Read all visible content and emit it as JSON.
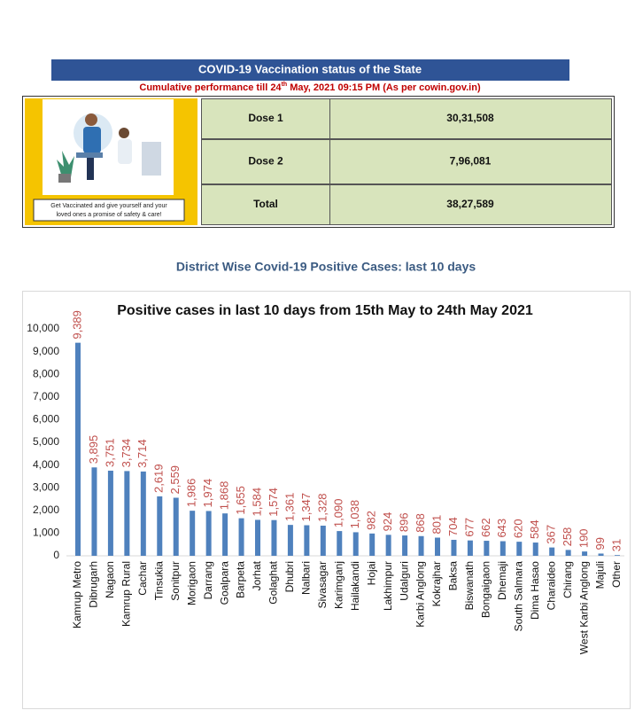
{
  "header": {
    "title": "COVID-19 Vaccination status of the State",
    "subtitle_parts": [
      "Cumulative performance till 24",
      "th",
      "  May, 2021 09:15  PM (As per cowin.gov.in)"
    ]
  },
  "banner_caption": "Get Vaccinated and give yourself and your loved ones a promise of safety & care!",
  "table": {
    "rows": [
      [
        "Dose 1",
        "30,31,508"
      ],
      [
        "Dose 2",
        "7,96,081"
      ],
      [
        "Total",
        "38,27,589"
      ]
    ]
  },
  "section_title": "District Wise Covid-19 Positive Cases: last 10 days",
  "chart_data": {
    "type": "bar",
    "title": "Positive cases in last 10 days from 15th May to 24th May 2021",
    "categories": [
      "Kamrup Metro",
      "Dibrugarh",
      "Nagaon",
      "Kamrup Rural",
      "Cachar",
      "Tinsukia",
      "Sonitpur",
      "Morigaon",
      "Darrang",
      "Goalpara",
      "Barpeta",
      "Jorhat",
      "Golaghat",
      "Dhubri",
      "Nalbari",
      "Sivasagar",
      "Karimganj",
      "Hailakandi",
      "Hojai",
      "Lakhimpur",
      "Udalguri",
      "Karbi Anglong",
      "Kokrajhar",
      "Baksa",
      "Biswanath",
      "Bongaigaon",
      "Dhemaji",
      "South Salmara",
      "Dima Hasao",
      "Charaideo",
      "Chirang",
      "West Karbi Anglong",
      "Majuli",
      "Other"
    ],
    "values": [
      9389,
      3895,
      3751,
      3734,
      3714,
      2619,
      2559,
      1986,
      1974,
      1868,
      1655,
      1584,
      1574,
      1361,
      1347,
      1328,
      1090,
      1038,
      982,
      924,
      896,
      868,
      801,
      704,
      677,
      662,
      643,
      620,
      584,
      367,
      258,
      190,
      99,
      31
    ],
    "value_labels": [
      "9,389",
      "3,895",
      "3,751",
      "3,734",
      "3,714",
      "2,619",
      "2,559",
      "1,986",
      "1,974",
      "1,868",
      "1,655",
      "1,584",
      "1,574",
      "1,361",
      "1,347",
      "1,328",
      "1,090",
      "1,038",
      "982",
      "924",
      "896",
      "868",
      "801",
      "704",
      "677",
      "662",
      "643",
      "620",
      "584",
      "367",
      "258",
      "190",
      "99",
      "31"
    ],
    "color": "#4f81bd",
    "value_label_color": "#c0504d",
    "ylim": [
      0,
      10000
    ],
    "yticks": [
      0,
      {
        "value": 1000,
        "label": "1,000"
      },
      {
        "value": 2000,
        "label": "2,000"
      },
      {
        "value": 3000,
        "label": "3,000"
      },
      {
        "value": 4000,
        "label": "4,000"
      },
      {
        "value": 5000,
        "label": "5,000"
      },
      {
        "value": 6000,
        "label": "6,000"
      },
      {
        "value": 7000,
        "label": "7,000"
      },
      {
        "value": 8000,
        "label": "8,000"
      },
      {
        "value": 9000,
        "label": "9,000"
      },
      {
        "value": 10000,
        "label": "10,000"
      }
    ],
    "grid": false
  }
}
